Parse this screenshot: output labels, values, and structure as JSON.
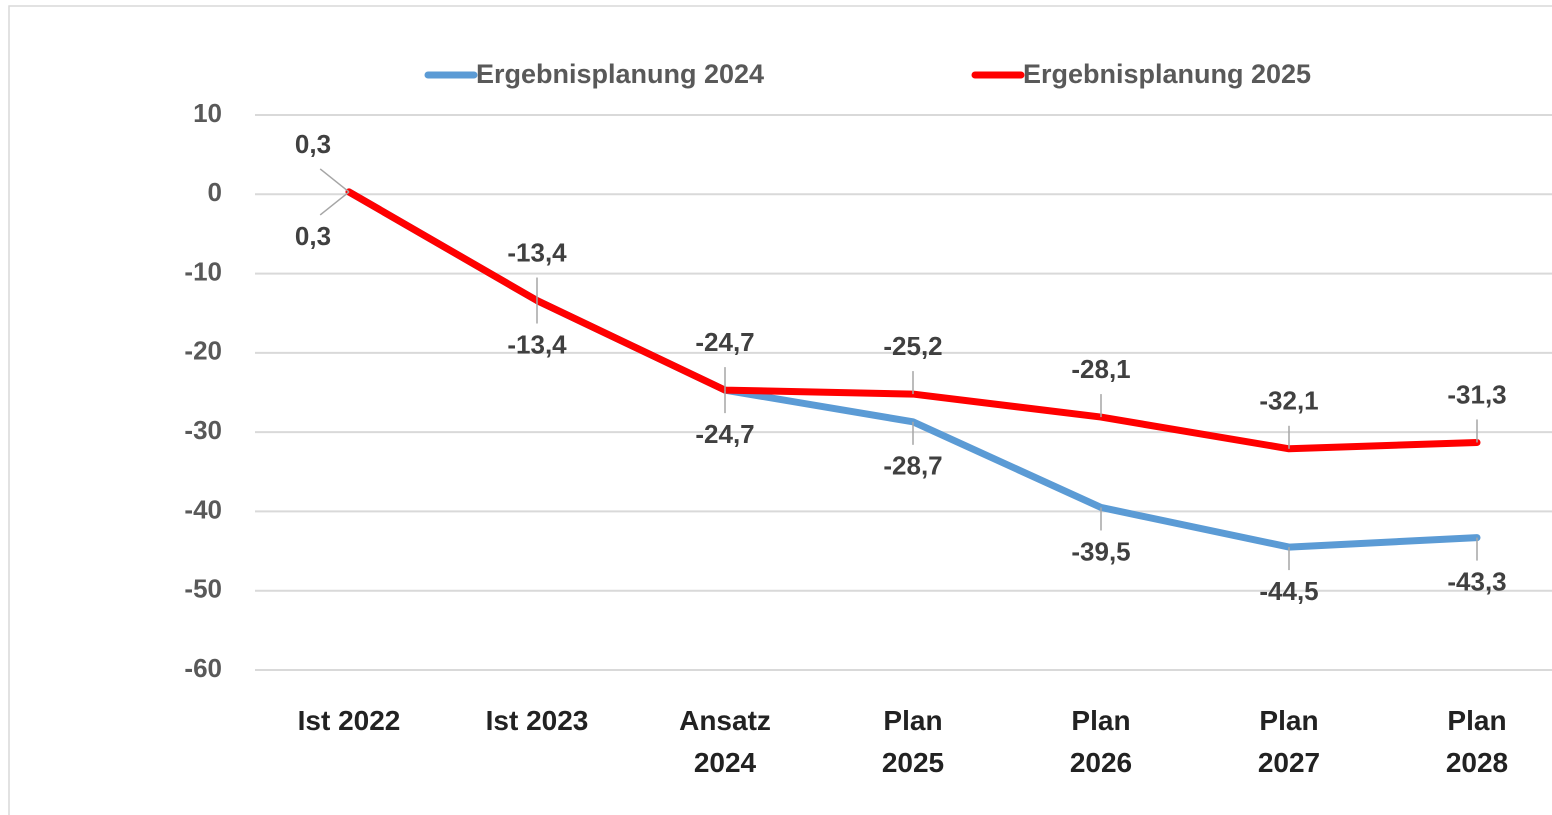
{
  "chart_data": {
    "type": "line",
    "categories": [
      "Ist 2022",
      "Ist 2023",
      "Ansatz 2024",
      "Plan 2025",
      "Plan 2026",
      "Plan 2027",
      "Plan 2028"
    ],
    "series": [
      {
        "name": "Ergebnisplanung 2024",
        "color": "#5b9bd5",
        "values": [
          0.3,
          -13.4,
          -24.7,
          -28.7,
          -39.5,
          -44.5,
          -43.3
        ],
        "value_labels": [
          "0,3",
          "-13,4",
          "-24,7",
          "-28,7",
          "-39,5",
          "-44,5",
          "-43,3"
        ]
      },
      {
        "name": "Ergebnisplanung 2025",
        "color": "#ff0000",
        "values": [
          0.3,
          -13.4,
          -24.7,
          -25.2,
          -28.1,
          -32.1,
          -31.3
        ],
        "value_labels": [
          "0,3",
          "-13,4",
          "-24,7",
          "-25,2",
          "-28,1",
          "-32,1",
          "-31,3"
        ]
      }
    ],
    "ylim": [
      -60,
      10
    ],
    "yticks": [
      -60,
      -50,
      -40,
      -30,
      -20,
      -10,
      0,
      10
    ],
    "grid": true,
    "legend": "top"
  }
}
